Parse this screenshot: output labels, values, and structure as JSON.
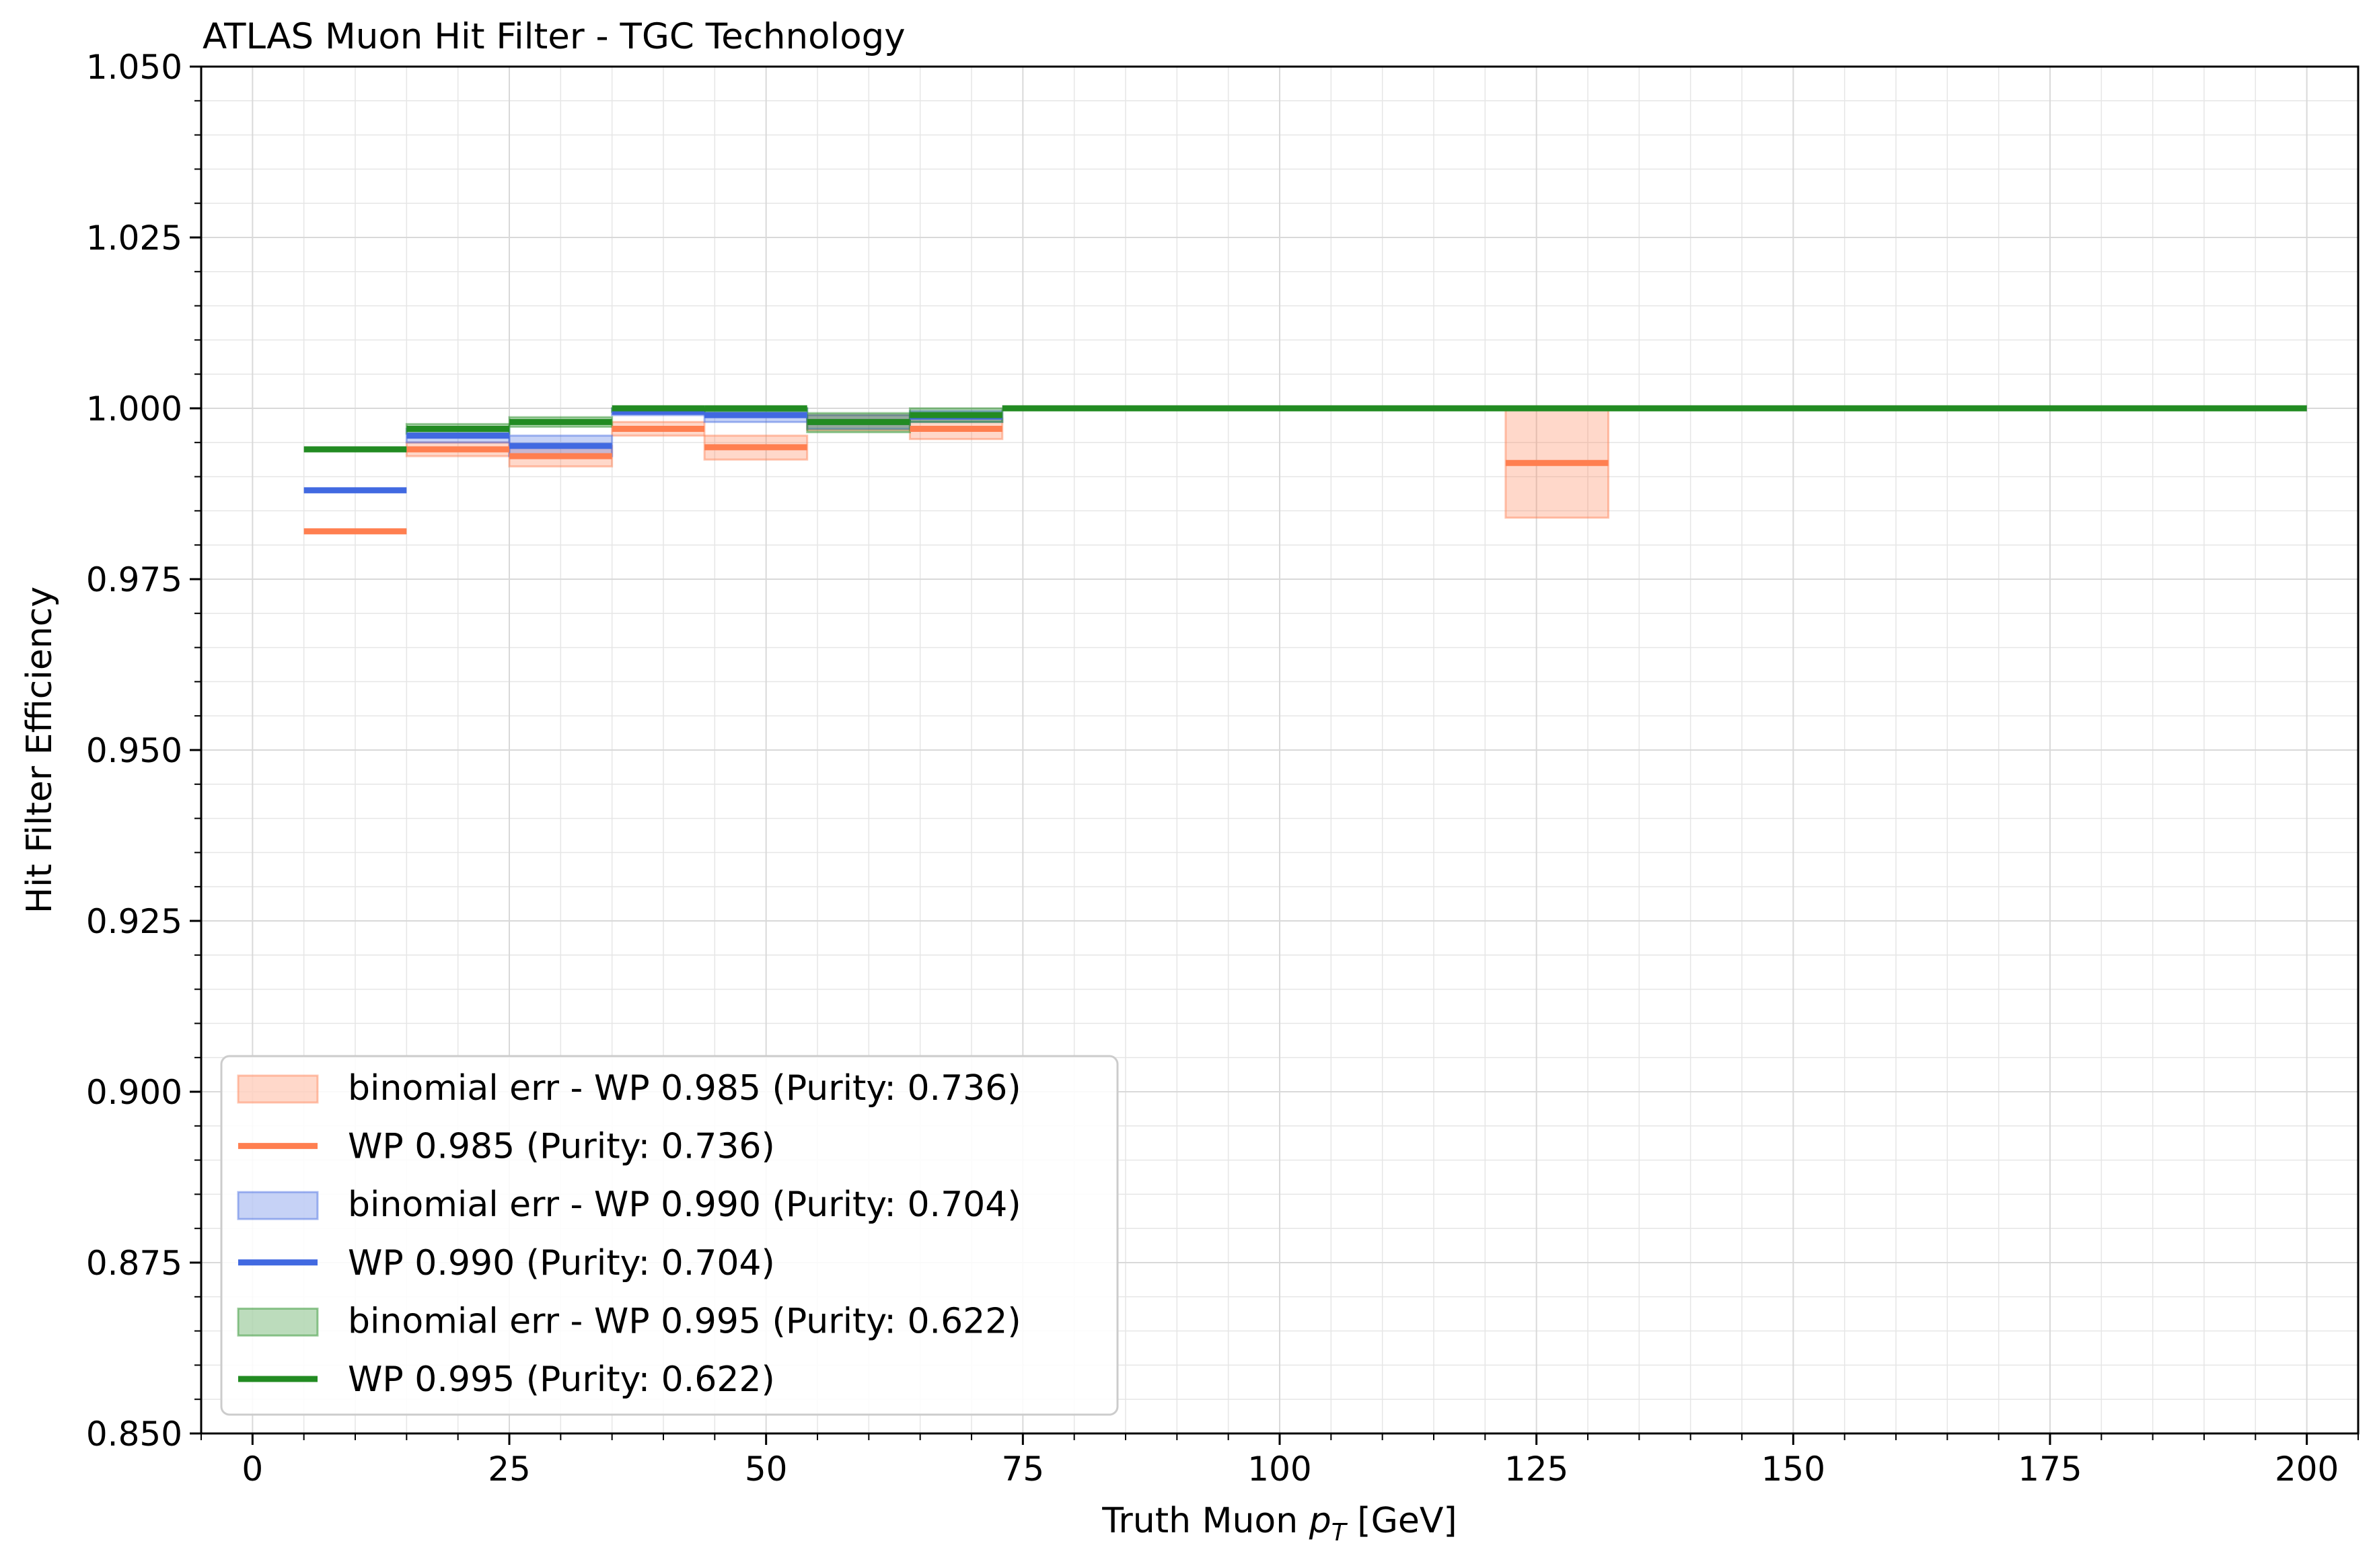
{
  "chart_data": {
    "type": "line",
    "title": "ATLAS Muon Hit Filter - TGC Technology",
    "xlabel": "Truth Muon p_T [GeV]",
    "xlabel_parts": {
      "prefix": "Truth Muon ",
      "var": "p",
      "sub": "T",
      "suffix": " [GeV]"
    },
    "ylabel": "Hit Filter Efficiency",
    "xlim": [
      -5,
      205
    ],
    "ylim": [
      0.85,
      1.05
    ],
    "xticks": [
      0,
      25,
      50,
      75,
      100,
      125,
      150,
      175,
      200
    ],
    "yticks": [
      0.85,
      0.875,
      0.9,
      0.925,
      0.95,
      0.975,
      1.0,
      1.025,
      1.05
    ],
    "xtick_labels": [
      "0",
      "25",
      "50",
      "75",
      "100",
      "125",
      "150",
      "175",
      "200"
    ],
    "ytick_labels": [
      "0.850",
      "0.875",
      "0.900",
      "0.925",
      "0.950",
      "0.975",
      "1.000",
      "1.025",
      "1.050"
    ],
    "grid": true,
    "legend_position": "lower-left",
    "series": [
      {
        "name": "WP 0.985 (Purity: 0.736)",
        "band_label": "binomial err - WP 0.985 (Purity: 0.736)",
        "color": "#ff7f50",
        "bins": [
          {
            "x0": 5,
            "x1": 15,
            "y": 0.982,
            "err_lo": 0.982,
            "err_hi": 0.982
          },
          {
            "x0": 15,
            "x1": 25,
            "y": 0.994,
            "err_lo": 0.993,
            "err_hi": 0.995
          },
          {
            "x0": 25,
            "x1": 35,
            "y": 0.993,
            "err_lo": 0.9915,
            "err_hi": 0.9945
          },
          {
            "x0": 35,
            "x1": 44,
            "y": 0.997,
            "err_lo": 0.996,
            "err_hi": 0.998
          },
          {
            "x0": 44,
            "x1": 54,
            "y": 0.9943,
            "err_lo": 0.9925,
            "err_hi": 0.996
          },
          {
            "x0": 54,
            "x1": 64,
            "y": 0.998,
            "err_lo": 0.9968,
            "err_hi": 0.999
          },
          {
            "x0": 64,
            "x1": 73,
            "y": 0.997,
            "err_lo": 0.9955,
            "err_hi": 0.9985
          },
          {
            "x0": 73,
            "x1": 122,
            "y": 1.0,
            "err_lo": 1.0,
            "err_hi": 1.0
          },
          {
            "x0": 122,
            "x1": 132,
            "y": 0.992,
            "err_lo": 0.984,
            "err_hi": 1.0
          },
          {
            "x0": 132,
            "x1": 200,
            "y": 1.0,
            "err_lo": 1.0,
            "err_hi": 1.0
          }
        ]
      },
      {
        "name": "WP 0.990 (Purity: 0.704)",
        "band_label": "binomial err - WP 0.990 (Purity: 0.704)",
        "color": "#4169e1",
        "bins": [
          {
            "x0": 5,
            "x1": 15,
            "y": 0.988,
            "err_lo": 0.988,
            "err_hi": 0.988
          },
          {
            "x0": 15,
            "x1": 25,
            "y": 0.996,
            "err_lo": 0.995,
            "err_hi": 0.997
          },
          {
            "x0": 25,
            "x1": 35,
            "y": 0.9945,
            "err_lo": 0.993,
            "err_hi": 0.996
          },
          {
            "x0": 35,
            "x1": 44,
            "y": 0.9995,
            "err_lo": 0.999,
            "err_hi": 1.0
          },
          {
            "x0": 44,
            "x1": 54,
            "y": 0.999,
            "err_lo": 0.998,
            "err_hi": 1.0
          },
          {
            "x0": 54,
            "x1": 64,
            "y": 0.998,
            "err_lo": 0.997,
            "err_hi": 0.999
          },
          {
            "x0": 64,
            "x1": 73,
            "y": 0.9988,
            "err_lo": 0.998,
            "err_hi": 0.9996
          },
          {
            "x0": 73,
            "x1": 200,
            "y": 1.0,
            "err_lo": 1.0,
            "err_hi": 1.0
          }
        ]
      },
      {
        "name": "WP 0.995 (Purity: 0.622)",
        "band_label": "binomial err - WP 0.995 (Purity: 0.622)",
        "color": "#228b22",
        "bins": [
          {
            "x0": 5,
            "x1": 15,
            "y": 0.994,
            "err_lo": 0.994,
            "err_hi": 0.994
          },
          {
            "x0": 15,
            "x1": 25,
            "y": 0.997,
            "err_lo": 0.9963,
            "err_hi": 0.9977
          },
          {
            "x0": 25,
            "x1": 35,
            "y": 0.998,
            "err_lo": 0.9973,
            "err_hi": 0.9987
          },
          {
            "x0": 35,
            "x1": 44,
            "y": 1.0,
            "err_lo": 0.9995,
            "err_hi": 1.0
          },
          {
            "x0": 44,
            "x1": 54,
            "y": 1.0,
            "err_lo": 0.9995,
            "err_hi": 1.0
          },
          {
            "x0": 54,
            "x1": 64,
            "y": 0.998,
            "err_lo": 0.9965,
            "err_hi": 0.9993
          },
          {
            "x0": 64,
            "x1": 73,
            "y": 0.999,
            "err_lo": 0.998,
            "err_hi": 1.0
          },
          {
            "x0": 73,
            "x1": 200,
            "y": 1.0,
            "err_lo": 1.0,
            "err_hi": 1.0
          }
        ]
      }
    ],
    "legend_entries": [
      {
        "kind": "band",
        "label": "binomial err - WP 0.985 (Purity: 0.736)",
        "color": "#ff7f50"
      },
      {
        "kind": "line",
        "label": "WP 0.985 (Purity: 0.736)",
        "color": "#ff7f50"
      },
      {
        "kind": "band",
        "label": "binomial err - WP 0.990 (Purity: 0.704)",
        "color": "#4169e1"
      },
      {
        "kind": "line",
        "label": "WP 0.990 (Purity: 0.704)",
        "color": "#4169e1"
      },
      {
        "kind": "band",
        "label": "binomial err - WP 0.995 (Purity: 0.622)",
        "color": "#228b22"
      },
      {
        "kind": "line",
        "label": "WP 0.995 (Purity: 0.622)",
        "color": "#228b22"
      }
    ]
  }
}
